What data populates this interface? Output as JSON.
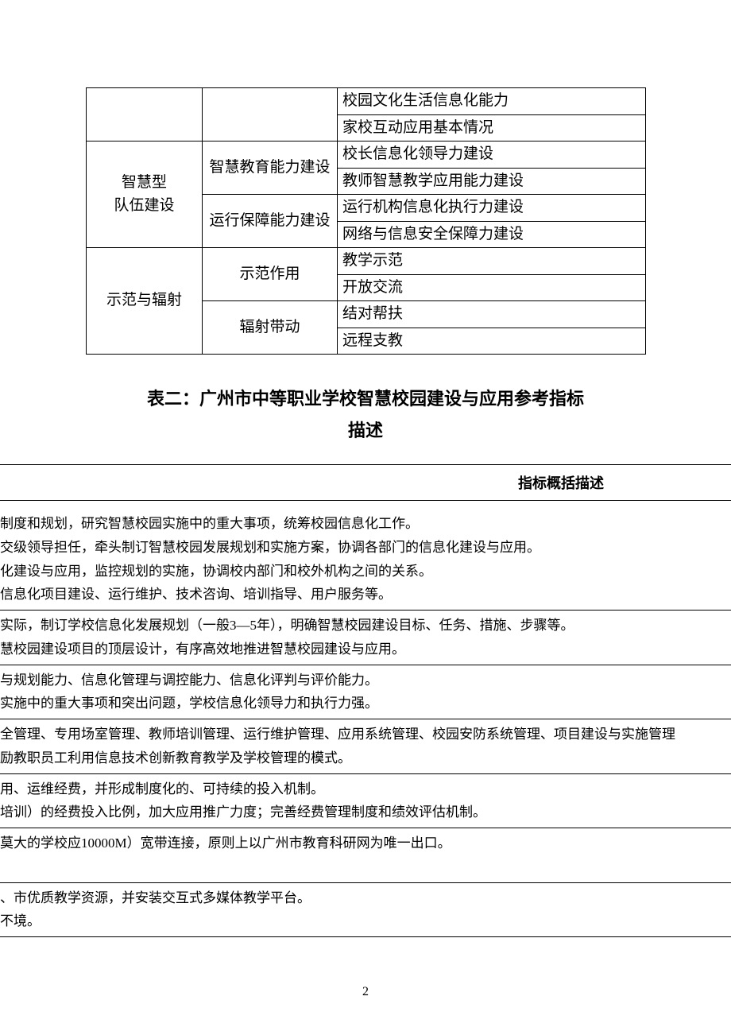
{
  "upper_table": {
    "rows": [
      {
        "a": "",
        "a_rs": 2,
        "b": "",
        "b_rs": 2,
        "c": "校园文化生活信息化能力"
      },
      {
        "c": "家校互动应用基本情况"
      },
      {
        "a": "智慧型\n队伍建设",
        "a_rs": 4,
        "b": "智慧教育能力建设",
        "b_rs": 2,
        "c": "校长信息化领导力建设"
      },
      {
        "c": "教师智慧教学应用能力建设"
      },
      {
        "b": "运行保障能力建设",
        "b_rs": 2,
        "c": "运行机构信息化执行力建设"
      },
      {
        "c": "网络与信息安全保障力建设"
      },
      {
        "a": "示范与辐射",
        "a_rs": 4,
        "b": "示范作用",
        "b_rs": 2,
        "c": "教学示范"
      },
      {
        "c": "开放交流"
      },
      {
        "b": "辐射带动",
        "b_rs": 2,
        "c": "结对帮扶"
      },
      {
        "c": "远程支教"
      }
    ]
  },
  "heading": "表二：广州市中等职业学校智慧校园建设与应用参考指标",
  "subheading": "描述",
  "desc_header": "指标概括描述",
  "groups": [
    [
      "制度和规划，研究智慧校园实施中的重大事项，统筹校园信息化工作。",
      "交级领导担任，牵头制订智慧校园发展规划和实施方案，协调各部门的信息化建设与应用。",
      "化建设与应用，监控规划的实施，协调校内部门和校外机构之间的关系。",
      "信息化项目建设、运行维护、技术咨询、培训指导、用户服务等。"
    ],
    [
      "实际，制订学校信息化发展规划（一般3—5年），明确智慧校园建设目标、任务、措施、步骤等。",
      "慧校园建设项目的顶层设计，有序高效地推进智慧校园建设与应用。"
    ],
    [
      "与规划能力、信息化管理与调控能力、信息化评判与评价能力。",
      "实施中的重大事项和突出问题，学校信息化领导力和执行力强。"
    ],
    [
      "全管理、专用场室管理、教师培训管理、运行维护管理、应用系统管理、校园安防系统管理、项目建设与实施管理",
      "励教职员工利用信息技术创新教育教学及学校管理的模式。"
    ],
    [
      "用、运维经费，并形成制度化的、可持续的投入机制。",
      "培训）的经费投入比例，加大应用推广力度；完善经费管理制度和绩效评估机制。"
    ],
    [
      "莫大的学校应10000M）宽带连接，原则上以广州市教育科研网为唯一出口。",
      ""
    ],
    [
      "、市优质教学资源，并安装交互式多媒体教学平台。",
      "不境。"
    ]
  ],
  "page_number": "2"
}
